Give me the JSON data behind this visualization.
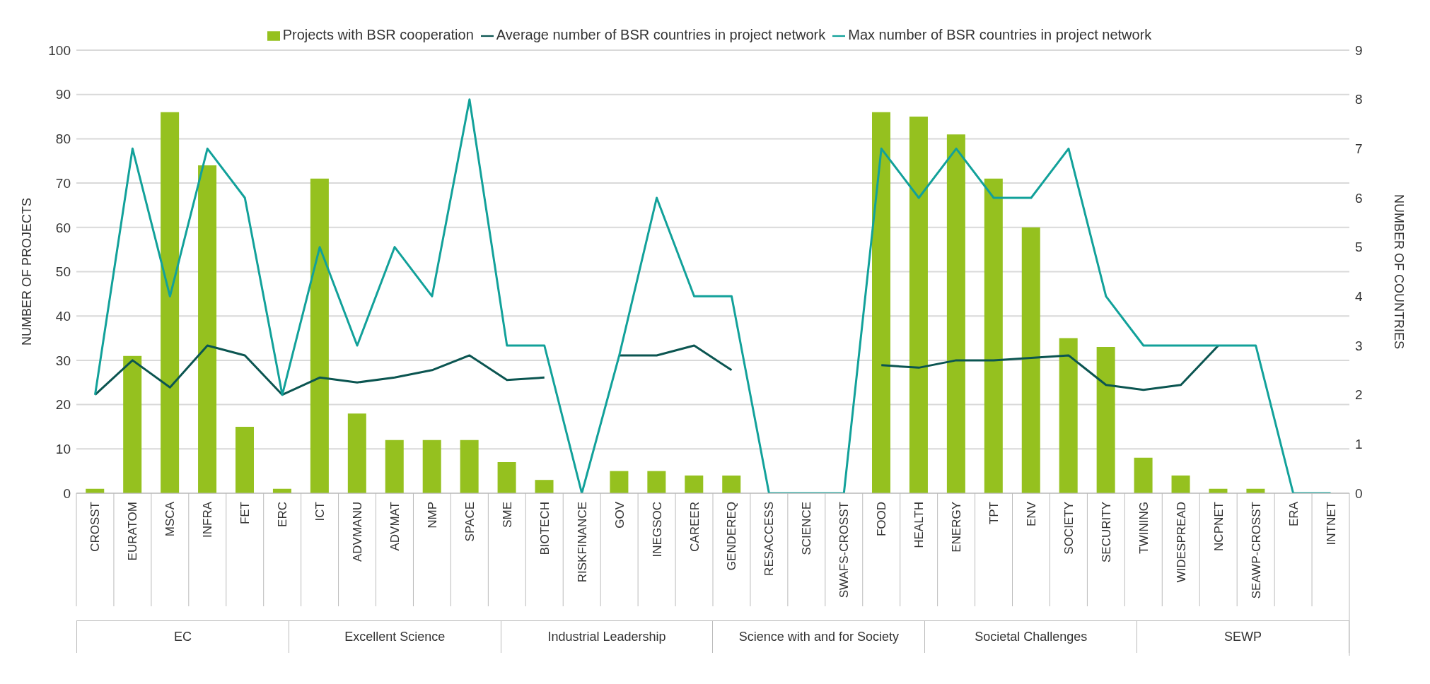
{
  "chart_data": {
    "type": "bar",
    "categories": [
      "CROSST",
      "EURATOM",
      "MSCA",
      "INFRA",
      "FET",
      "ERC",
      "ICT",
      "ADVMANU",
      "ADVMAT",
      "NMP",
      "SPACE",
      "SME",
      "BIOTECH",
      "RISKFINANCE",
      "GOV",
      "INEGSOC",
      "CAREER",
      "GENDEREQ",
      "RESACCESS",
      "SCIENCE",
      "SWAFS-CROSST",
      "FOOD",
      "HEALTH",
      "ENERGY",
      "TPT",
      "ENV",
      "SOCIETY",
      "SECURITY",
      "TWINING",
      "WIDESPREAD",
      "NCPNET",
      "SEAWP-CROSST",
      "ERA",
      "INTNET"
    ],
    "series": [
      {
        "name": "Projects with BSR cooperation",
        "color": "#95c11f",
        "values": [
          1,
          31,
          86,
          74,
          15,
          1,
          71,
          18,
          12,
          12,
          12,
          7,
          3,
          0,
          5,
          5,
          4,
          4,
          0,
          0,
          0,
          86,
          85,
          81,
          71,
          60,
          35,
          33,
          8,
          4,
          1,
          1,
          0,
          0
        ]
      },
      {
        "name": "Average number of BSR countries in project network",
        "type": "line",
        "axis": "y2",
        "color": "#0b5551",
        "values": [
          2.0,
          2.7,
          2.15,
          3.0,
          2.8,
          2.0,
          2.35,
          2.25,
          2.35,
          2.5,
          2.8,
          2.3,
          2.35,
          null,
          2.8,
          2.8,
          3.0,
          2.5,
          null,
          null,
          null,
          2.6,
          2.55,
          2.7,
          2.7,
          2.75,
          2.8,
          2.2,
          2.1,
          2.2,
          3,
          null,
          null,
          null
        ]
      },
      {
        "name": "Max number of BSR countries in project network",
        "type": "line",
        "axis": "y2",
        "color": "#12a19a",
        "values": [
          2,
          7,
          4,
          7,
          6,
          2,
          5,
          3,
          5,
          4,
          8,
          3,
          3,
          0,
          2.8,
          6,
          4,
          4,
          0,
          0,
          0,
          7,
          6,
          7,
          6,
          6,
          7,
          4,
          3,
          3,
          3,
          3,
          0,
          0
        ]
      }
    ],
    "ylabel": "NUMBER OF PROJECTS",
    "y2label": "NUMBER OF COUNTRIES",
    "ylim": [
      0,
      100
    ],
    "yticks": [
      0,
      10,
      20,
      30,
      40,
      50,
      60,
      70,
      80,
      90,
      100
    ],
    "y2lim": [
      0,
      9
    ],
    "y2ticks": [
      0,
      1,
      2,
      3,
      4,
      5,
      6,
      7,
      8,
      9
    ],
    "grid": "y",
    "legend": "top",
    "marker": "none",
    "line_style": "solid",
    "annotations": [
      "EC",
      "Excellent Science",
      "Industrial Leadership",
      "Science with and for Society",
      "Societal Challenges",
      "SEWP"
    ]
  }
}
